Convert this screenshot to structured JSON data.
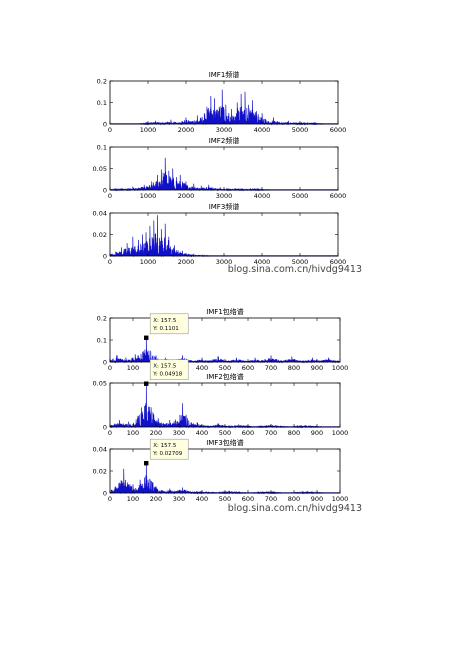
{
  "colors": {
    "line": "#1010c8",
    "axis": "#000000",
    "tip_bg": "#ffffe0",
    "tip_border": "#999999",
    "watermark": "#333333"
  },
  "chart_data": [
    {
      "type": "line",
      "title": "IMF1频谱",
      "xlim": [
        0,
        6000
      ],
      "ylim": [
        0,
        0.2
      ],
      "xticks": [
        0,
        1000,
        2000,
        3000,
        4000,
        5000,
        6000
      ],
      "yticks": [
        0,
        0.1,
        0.2
      ],
      "peaks": [
        {
          "x": 1200,
          "y": 0.015
        },
        {
          "x": 1600,
          "y": 0.02
        },
        {
          "x": 2000,
          "y": 0.03
        },
        {
          "x": 2300,
          "y": 0.04
        },
        {
          "x": 2550,
          "y": 0.08
        },
        {
          "x": 2650,
          "y": 0.13
        },
        {
          "x": 2750,
          "y": 0.12
        },
        {
          "x": 2850,
          "y": 0.06
        },
        {
          "x": 2950,
          "y": 0.16
        },
        {
          "x": 3050,
          "y": 0.09
        },
        {
          "x": 3200,
          "y": 0.07
        },
        {
          "x": 3350,
          "y": 0.1
        },
        {
          "x": 3450,
          "y": 0.14
        },
        {
          "x": 3550,
          "y": 0.15
        },
        {
          "x": 3650,
          "y": 0.09
        },
        {
          "x": 3750,
          "y": 0.11
        },
        {
          "x": 3850,
          "y": 0.06
        },
        {
          "x": 4000,
          "y": 0.05
        },
        {
          "x": 4300,
          "y": 0.03
        },
        {
          "x": 4700,
          "y": 0.015
        },
        {
          "x": 5200,
          "y": 0.008
        }
      ]
    },
    {
      "type": "line",
      "title": "IMF2频谱",
      "xlim": [
        0,
        6000
      ],
      "ylim": [
        0,
        0.1
      ],
      "xticks": [
        0,
        1000,
        2000,
        3000,
        4000,
        5000,
        6000
      ],
      "yticks": [
        0,
        0.05,
        0.1
      ],
      "peaks": [
        {
          "x": 300,
          "y": 0.004
        },
        {
          "x": 600,
          "y": 0.008
        },
        {
          "x": 900,
          "y": 0.012
        },
        {
          "x": 1100,
          "y": 0.02
        },
        {
          "x": 1250,
          "y": 0.035
        },
        {
          "x": 1350,
          "y": 0.048
        },
        {
          "x": 1450,
          "y": 0.075
        },
        {
          "x": 1550,
          "y": 0.045
        },
        {
          "x": 1650,
          "y": 0.05
        },
        {
          "x": 1750,
          "y": 0.03
        },
        {
          "x": 1850,
          "y": 0.035
        },
        {
          "x": 2000,
          "y": 0.02
        },
        {
          "x": 2200,
          "y": 0.015
        },
        {
          "x": 2400,
          "y": 0.01
        },
        {
          "x": 2600,
          "y": 0.012
        },
        {
          "x": 2900,
          "y": 0.006
        },
        {
          "x": 3300,
          "y": 0.004
        },
        {
          "x": 3800,
          "y": 0.003
        }
      ]
    },
    {
      "type": "line",
      "title": "IMF3频谱",
      "xlim": [
        0,
        6000
      ],
      "ylim": [
        0,
        0.04
      ],
      "xticks": [
        0,
        1000,
        2000,
        3000,
        4000,
        5000,
        6000
      ],
      "yticks": [
        0,
        0.02,
        0.04
      ],
      "peaks": [
        {
          "x": 150,
          "y": 0.004
        },
        {
          "x": 300,
          "y": 0.008
        },
        {
          "x": 450,
          "y": 0.012
        },
        {
          "x": 600,
          "y": 0.018
        },
        {
          "x": 750,
          "y": 0.015
        },
        {
          "x": 850,
          "y": 0.02
        },
        {
          "x": 950,
          "y": 0.022
        },
        {
          "x": 1050,
          "y": 0.028
        },
        {
          "x": 1150,
          "y": 0.033
        },
        {
          "x": 1250,
          "y": 0.038
        },
        {
          "x": 1350,
          "y": 0.025
        },
        {
          "x": 1450,
          "y": 0.03
        },
        {
          "x": 1550,
          "y": 0.018
        },
        {
          "x": 1700,
          "y": 0.01
        },
        {
          "x": 1900,
          "y": 0.005
        },
        {
          "x": 2200,
          "y": 0.002
        }
      ]
    },
    {
      "type": "line",
      "title": "IMF1包络谱",
      "xlim": [
        0,
        1000
      ],
      "ylim": [
        0,
        0.2
      ],
      "xticks": [
        0,
        100,
        200,
        300,
        400,
        500,
        600,
        700,
        800,
        900,
        1000
      ],
      "yticks": [
        0,
        0.1,
        0.2
      ],
      "peaks": [
        {
          "x": 30,
          "y": 0.03
        },
        {
          "x": 70,
          "y": 0.02
        },
        {
          "x": 110,
          "y": 0.035
        },
        {
          "x": 157.5,
          "y": 0.1101
        },
        {
          "x": 200,
          "y": 0.03
        },
        {
          "x": 240,
          "y": 0.02
        },
        {
          "x": 315,
          "y": 0.03
        },
        {
          "x": 400,
          "y": 0.02
        },
        {
          "x": 470,
          "y": 0.025
        },
        {
          "x": 550,
          "y": 0.02
        },
        {
          "x": 630,
          "y": 0.02
        },
        {
          "x": 700,
          "y": 0.03
        },
        {
          "x": 790,
          "y": 0.025
        },
        {
          "x": 880,
          "y": 0.02
        },
        {
          "x": 950,
          "y": 0.02
        }
      ],
      "datatip": {
        "x_text": "X: 157.5",
        "y_text": "Y: 0.1101",
        "x": 157.5,
        "y": 0.1101
      }
    },
    {
      "type": "line",
      "title": "IMF2包络谱",
      "xlim": [
        0,
        1000
      ],
      "ylim": [
        0,
        0.05
      ],
      "xticks": [
        0,
        100,
        200,
        300,
        400,
        500,
        600,
        700,
        800,
        900,
        1000
      ],
      "yticks": [
        0,
        0.05
      ],
      "peaks": [
        {
          "x": 40,
          "y": 0.008
        },
        {
          "x": 80,
          "y": 0.006
        },
        {
          "x": 120,
          "y": 0.01
        },
        {
          "x": 157.5,
          "y": 0.04918
        },
        {
          "x": 210,
          "y": 0.01
        },
        {
          "x": 260,
          "y": 0.008
        },
        {
          "x": 315,
          "y": 0.027
        },
        {
          "x": 380,
          "y": 0.005
        },
        {
          "x": 470,
          "y": 0.004
        },
        {
          "x": 560,
          "y": 0.003
        },
        {
          "x": 700,
          "y": 0.003
        },
        {
          "x": 850,
          "y": 0.002
        }
      ],
      "datatip": {
        "x_text": "X: 157.5",
        "y_text": "Y: 0.04918",
        "x": 157.5,
        "y": 0.04918
      }
    },
    {
      "type": "line",
      "title": "IMF3包络谱",
      "xlim": [
        0,
        1000
      ],
      "ylim": [
        0,
        0.04
      ],
      "xticks": [
        0,
        100,
        200,
        300,
        400,
        500,
        600,
        700,
        800,
        900,
        1000
      ],
      "yticks": [
        0,
        0.02,
        0.04
      ],
      "peaks": [
        {
          "x": 25,
          "y": 0.006
        },
        {
          "x": 60,
          "y": 0.022
        },
        {
          "x": 100,
          "y": 0.008
        },
        {
          "x": 130,
          "y": 0.012
        },
        {
          "x": 157.5,
          "y": 0.02709
        },
        {
          "x": 200,
          "y": 0.006
        },
        {
          "x": 260,
          "y": 0.004
        },
        {
          "x": 315,
          "y": 0.005
        },
        {
          "x": 400,
          "y": 0.002
        },
        {
          "x": 520,
          "y": 0.002
        },
        {
          "x": 680,
          "y": 0.0015
        },
        {
          "x": 860,
          "y": 0.0015
        }
      ],
      "datatip": {
        "x_text": "X: 157.5",
        "y_text": "Y: 0.02709",
        "x": 157.5,
        "y": 0.02709
      }
    }
  ],
  "watermarks": [
    "blog.sina.com.cn/hivdg9413",
    "blog.sina.com.cn/hivdg9413"
  ]
}
